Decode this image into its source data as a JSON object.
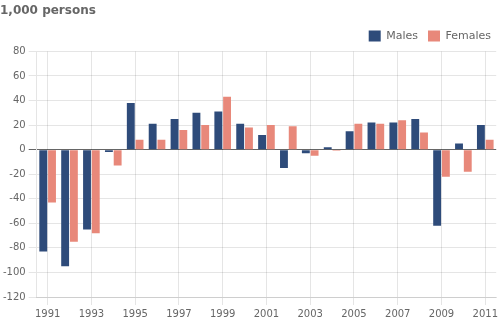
{
  "chart_data": {
    "type": "bar",
    "title": "1,000 persons",
    "categories": [
      "1991",
      null,
      "1993",
      null,
      "1995",
      null,
      "1997",
      null,
      "1999",
      null,
      "2001",
      null,
      "2003",
      null,
      "2005",
      null,
      "2007",
      null,
      "2009",
      null,
      "2011"
    ],
    "series": [
      {
        "name": "Males",
        "color": "#2E4B7A",
        "values": [
          -83,
          -95,
          -65,
          -2,
          38,
          21,
          25,
          30,
          31,
          21,
          12,
          -15,
          -3,
          2,
          15,
          22,
          22,
          25,
          -62,
          5,
          20
        ]
      },
      {
        "name": "Females",
        "color": "#E8887A",
        "values": [
          -43,
          -75,
          -68,
          -13,
          8,
          8,
          16,
          20,
          43,
          18,
          20,
          19,
          -5,
          -1,
          21,
          21,
          24,
          14,
          -22,
          -18,
          8
        ]
      }
    ],
    "ylim": [
      -120,
      80
    ],
    "yticks": [
      -120,
      -100,
      -80,
      -60,
      -40,
      -20,
      0,
      20,
      40,
      60,
      80
    ],
    "grid": true,
    "legend": "upper right"
  }
}
